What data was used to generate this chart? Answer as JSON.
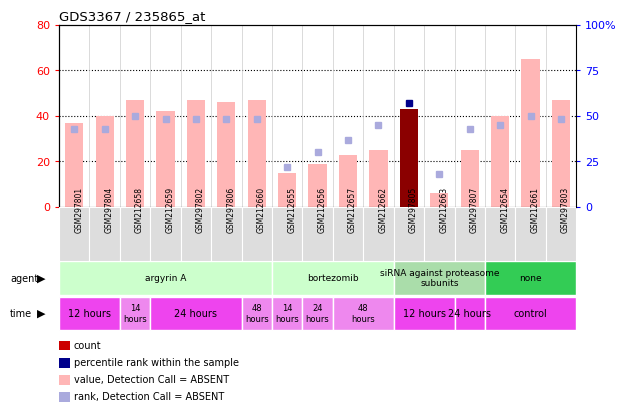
{
  "title": "GDS3367 / 235865_at",
  "samples": [
    "GSM297801",
    "GSM297804",
    "GSM212658",
    "GSM212659",
    "GSM297802",
    "GSM297806",
    "GSM212660",
    "GSM212655",
    "GSM212656",
    "GSM212657",
    "GSM212662",
    "GSM297805",
    "GSM212663",
    "GSM297807",
    "GSM212654",
    "GSM212661",
    "GSM297803"
  ],
  "bar_values": [
    37,
    40,
    47,
    42,
    47,
    46,
    47,
    15,
    19,
    23,
    25,
    43,
    6,
    25,
    40,
    65,
    47
  ],
  "bar_absent": [
    true,
    true,
    true,
    true,
    true,
    true,
    true,
    true,
    true,
    true,
    true,
    false,
    true,
    true,
    true,
    true,
    true
  ],
  "rank_values": [
    43,
    43,
    50,
    48,
    48,
    48,
    48,
    22,
    30,
    37,
    45,
    57,
    18,
    43,
    45,
    50,
    48
  ],
  "rank_absent": [
    true,
    true,
    true,
    true,
    true,
    true,
    true,
    true,
    true,
    true,
    true,
    false,
    true,
    true,
    true,
    true,
    true
  ],
  "ylim_left": [
    0,
    80
  ],
  "ylim_right": [
    0,
    100
  ],
  "yticks_left": [
    0,
    20,
    40,
    60,
    80
  ],
  "yticks_right": [
    0,
    25,
    50,
    75,
    100
  ],
  "ytick_labels_right": [
    "0",
    "25",
    "50",
    "75",
    "100%"
  ],
  "color_bar_absent": "#FFB6B6",
  "color_bar_present": "#8B0000",
  "color_rank_absent": "#AAAADD",
  "color_rank_present": "#00008B",
  "agent_groups": [
    {
      "label": "argyrin A",
      "start": 0,
      "end": 7,
      "color": "#CCFFCC"
    },
    {
      "label": "bortezomib",
      "start": 7,
      "end": 11,
      "color": "#CCFFCC"
    },
    {
      "label": "siRNA against proteasome\nsubunits",
      "start": 11,
      "end": 14,
      "color": "#AADDAA"
    },
    {
      "label": "none",
      "start": 14,
      "end": 17,
      "color": "#33CC55"
    }
  ],
  "time_groups": [
    {
      "label": "12 hours",
      "start": 0,
      "end": 2,
      "color": "#EE44EE",
      "fontsize": 7
    },
    {
      "label": "14\nhours",
      "start": 2,
      "end": 3,
      "color": "#EE88EE",
      "fontsize": 6
    },
    {
      "label": "24 hours",
      "start": 3,
      "end": 6,
      "color": "#EE44EE",
      "fontsize": 7
    },
    {
      "label": "48\nhours",
      "start": 6,
      "end": 7,
      "color": "#EE88EE",
      "fontsize": 6
    },
    {
      "label": "14\nhours",
      "start": 7,
      "end": 8,
      "color": "#EE88EE",
      "fontsize": 6
    },
    {
      "label": "24\nhours",
      "start": 8,
      "end": 9,
      "color": "#EE88EE",
      "fontsize": 6
    },
    {
      "label": "48\nhours",
      "start": 9,
      "end": 11,
      "color": "#EE88EE",
      "fontsize": 6
    },
    {
      "label": "12 hours",
      "start": 11,
      "end": 13,
      "color": "#EE44EE",
      "fontsize": 7
    },
    {
      "label": "24 hours",
      "start": 13,
      "end": 14,
      "color": "#EE44EE",
      "fontsize": 7
    },
    {
      "label": "control",
      "start": 14,
      "end": 17,
      "color": "#EE44EE",
      "fontsize": 7
    }
  ],
  "legend_items": [
    {
      "label": "count",
      "color": "#CC0000"
    },
    {
      "label": "percentile rank within the sample",
      "color": "#00008B"
    },
    {
      "label": "value, Detection Call = ABSENT",
      "color": "#FFB6B6"
    },
    {
      "label": "rank, Detection Call = ABSENT",
      "color": "#AAAADD"
    }
  ]
}
